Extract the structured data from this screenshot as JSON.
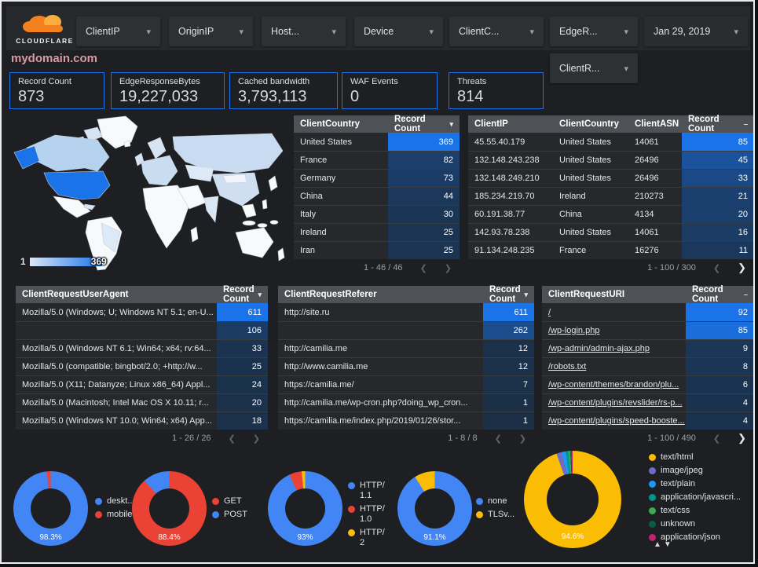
{
  "header": {
    "brand": "CLOUDFLARE",
    "filters": [
      "ClientIP",
      "OriginIP",
      "Host...",
      "Device",
      "ClientC...",
      "EdgeR..."
    ],
    "extra_filter": "ClientR...",
    "date": "Jan 29, 2019",
    "domain_title": "mydomain.com"
  },
  "icons": {
    "caret_down": "▾",
    "chevron_left": "❮",
    "chevron_right": "❯",
    "sort_asc": "▲",
    "sort_desc": "▼"
  },
  "colors": {
    "accent_blue": "#1a73e8",
    "heat_low": "#1b2f47",
    "map_min_color": "#dbe7f5",
    "map_max_color": "#1a73e8"
  },
  "scorecards": [
    {
      "label": "Record Count",
      "value": "873"
    },
    {
      "label": "EdgeResponseBytes",
      "value": "19,227,033"
    },
    {
      "label": "Cached bandwidth",
      "value": "3,793,113"
    },
    {
      "label": "WAF Events",
      "value": "0"
    },
    {
      "label": "Threats",
      "value": "814"
    }
  ],
  "map": {
    "scale_min": "1",
    "scale_max": "369"
  },
  "tables": {
    "country": {
      "headers": [
        "ClientCountry",
        "Record Count"
      ],
      "sort_icon": "▾",
      "rows": [
        [
          "United States",
          "369"
        ],
        [
          "France",
          "82"
        ],
        [
          "Germany",
          "73"
        ],
        [
          "China",
          "44"
        ],
        [
          "Italy",
          "30"
        ],
        [
          "Ireland",
          "25"
        ],
        [
          "Iran",
          "25"
        ]
      ],
      "pagination": "1 - 46 / 46"
    },
    "ip": {
      "headers": [
        "ClientIP",
        "ClientCountry",
        "ClientASN",
        "Record Count"
      ],
      "sort_icon": "–",
      "rows": [
        [
          "45.55.40.179",
          "United States",
          "14061",
          "85"
        ],
        [
          "132.148.243.238",
          "United States",
          "26496",
          "45"
        ],
        [
          "132.148.249.210",
          "United States",
          "26496",
          "33"
        ],
        [
          "185.234.219.70",
          "Ireland",
          "210273",
          "21"
        ],
        [
          "60.191.38.77",
          "China",
          "4134",
          "20"
        ],
        [
          "142.93.78.238",
          "United States",
          "14061",
          "16"
        ],
        [
          "91.134.248.235",
          "France",
          "16276",
          "11"
        ]
      ],
      "pagination": "1 - 100 / 300"
    },
    "useragent": {
      "headers": [
        "ClientRequestUserAgent",
        "Record Count"
      ],
      "sort_icon": "▾",
      "rows": [
        [
          "Mozilla/5.0 (Windows; U; Windows NT 5.1; en-U...",
          "611"
        ],
        [
          "",
          "106"
        ],
        [
          "Mozilla/5.0 (Windows NT 6.1; Win64; x64; rv:64...",
          "33"
        ],
        [
          "Mozilla/5.0 (compatible; bingbot/2.0; +http://w...",
          "25"
        ],
        [
          "Mozilla/5.0 (X11; Datanyze; Linux x86_64) Appl...",
          "24"
        ],
        [
          "Mozilla/5.0 (Macintosh; Intel Mac OS X 10.11; r...",
          "20"
        ],
        [
          "Mozilla/5.0 (Windows NT 10.0; Win64; x64) App...",
          "18"
        ]
      ],
      "pagination": "1 - 26 / 26"
    },
    "referer": {
      "headers": [
        "ClientRequestReferer",
        "Record Count"
      ],
      "sort_icon": "▾",
      "rows": [
        [
          "http://site.ru",
          "611"
        ],
        [
          "",
          "262"
        ],
        [
          "http://camilia.me",
          "12"
        ],
        [
          "http://www.camilia.me",
          "12"
        ],
        [
          "https://camilia.me/",
          "7"
        ],
        [
          "http://camilia.me/wp-cron.php?doing_wp_cron...",
          "1"
        ],
        [
          "https://camilia.me/index.php/2019/01/26/stor...",
          "1"
        ]
      ],
      "pagination": "1 - 8 / 8"
    },
    "uri": {
      "headers": [
        "ClientRequestURI",
        "Record Count"
      ],
      "sort_icon": "–",
      "rows": [
        [
          "/",
          "92"
        ],
        [
          "/wp-login.php",
          "85"
        ],
        [
          "/wp-admin/admin-ajax.php",
          "9"
        ],
        [
          "/robots.txt",
          "8"
        ],
        [
          "/wp-content/themes/brandon/plu...",
          "6"
        ],
        [
          "/wp-content/plugins/revslider/rs-p...",
          "4"
        ],
        [
          "/wp-content/plugins/speed-booste...",
          "4"
        ]
      ],
      "pagination": "1 - 100 / 490"
    }
  },
  "chart_data": [
    {
      "type": "pie",
      "title": "Device type",
      "center_label": "98.3%",
      "legend_position": "right",
      "slices": [
        {
          "name": "deskt...",
          "color": "#4285f4",
          "pct": 98.3
        },
        {
          "name": "mobile",
          "color": "#ea4335",
          "pct": 1.7
        }
      ]
    },
    {
      "type": "pie",
      "title": "HTTP method",
      "center_label": "88.4%",
      "legend_position": "right",
      "slices": [
        {
          "name": "GET",
          "color": "#ea4335",
          "pct": 88.4
        },
        {
          "name": "POST",
          "color": "#4285f4",
          "pct": 11.6
        }
      ]
    },
    {
      "type": "pie",
      "title": "HTTP version",
      "center_label": "93%",
      "legend_position": "right",
      "slices": [
        {
          "name": "HTTP/1.1",
          "color": "#4285f4",
          "pct": 93
        },
        {
          "name": "HTTP/1.0",
          "color": "#ea4335",
          "pct": 5.5
        },
        {
          "name": "HTTP/2",
          "color": "#fbbc04",
          "pct": 1.5
        }
      ]
    },
    {
      "type": "pie",
      "title": "TLS version",
      "center_label": "91.1%",
      "legend_position": "right",
      "slices": [
        {
          "name": "none",
          "color": "#4285f4",
          "pct": 91.1
        },
        {
          "name": "TLSv...",
          "color": "#fbbc04",
          "pct": 8.9
        }
      ]
    },
    {
      "type": "pie",
      "title": "Content type",
      "center_label": "94.6%",
      "legend_position": "right",
      "slices": [
        {
          "name": "text/html",
          "color": "#fbbc04",
          "pct": 94.6
        },
        {
          "name": "image/jpeg",
          "color": "#6f6cc6",
          "pct": 1.8
        },
        {
          "name": "text/plain",
          "color": "#1e96f3",
          "pct": 1.3
        },
        {
          "name": "application/javascri...",
          "color": "#00968b",
          "pct": 0.9
        },
        {
          "name": "text/css",
          "color": "#3fa94f",
          "pct": 0.6
        },
        {
          "name": "unknown",
          "color": "#0b5d40",
          "pct": 0.4
        },
        {
          "name": "application/json",
          "color": "#c0246f",
          "pct": 0.4
        }
      ]
    }
  ]
}
